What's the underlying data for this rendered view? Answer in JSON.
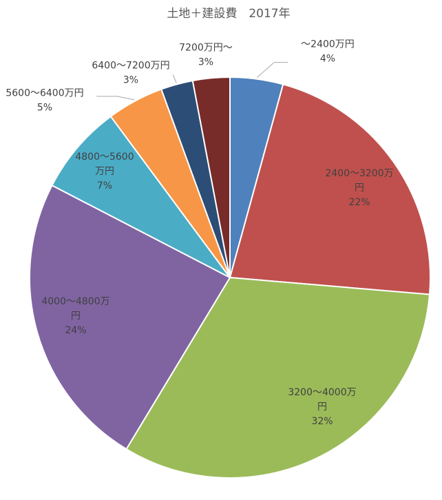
{
  "chart_data": {
    "type": "pie",
    "title": "土地＋建設費　2017年",
    "start_angle_deg": 0,
    "direction": "clockwise",
    "slices": [
      {
        "label": [
          "～2400万円"
        ],
        "percent_label": "4%",
        "value": 4.3,
        "color": "#4f81bd",
        "label_position": "outside"
      },
      {
        "label": [
          "2400～3200万",
          "円"
        ],
        "percent_label": "22%",
        "value": 22.2,
        "color": "#c0504d",
        "label_position": "inside"
      },
      {
        "label": [
          "3200～4000万",
          "円"
        ],
        "percent_label": "32%",
        "value": 32.5,
        "color": "#9bbb59",
        "label_position": "inside"
      },
      {
        "label": [
          "4000～4800万",
          "円"
        ],
        "percent_label": "24%",
        "value": 24.1,
        "color": "#8064a2",
        "label_position": "inside"
      },
      {
        "label": [
          "4800～5600",
          "万円"
        ],
        "percent_label": "7%",
        "value": 7.3,
        "color": "#4bacc6",
        "label_position": "inside"
      },
      {
        "label": [
          "5600～6400万円"
        ],
        "percent_label": "5%",
        "value": 4.6,
        "color": "#f79646",
        "label_position": "outside"
      },
      {
        "label": [
          "6400～7200万円"
        ],
        "percent_label": "3%",
        "value": 2.6,
        "color": "#2c4d75",
        "label_position": "outside"
      },
      {
        "label": [
          "7200万円～"
        ],
        "percent_label": "3%",
        "value": 3.0,
        "color": "#772c2a",
        "label_position": "outside"
      }
    ]
  }
}
